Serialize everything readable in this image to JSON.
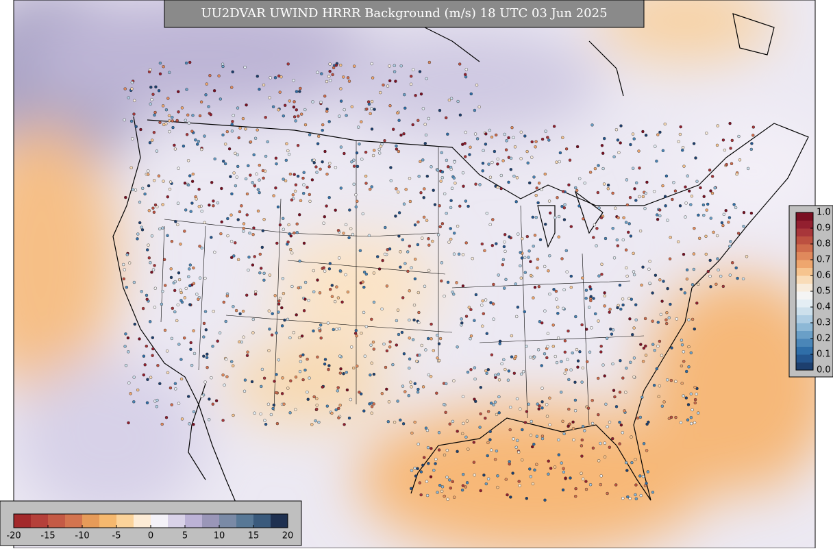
{
  "title": "UU2DVAR UWIND HRRR Background (m/s) 18 UTC 03 Jun 2025",
  "wind_colorbar": {
    "lim": [
      -20,
      20
    ],
    "ticks": [
      -20,
      -15,
      -10,
      -5,
      0,
      5,
      10,
      15,
      20
    ],
    "colors": [
      "#a3292b",
      "#b5403a",
      "#c45a45",
      "#d3744f",
      "#e69b59",
      "#f5b86e",
      "#fbd39a",
      "#fdecd6",
      "#f4f2f8",
      "#d9d2e8",
      "#bcb2d6",
      "#9a96b8",
      "#7a8aa6",
      "#587896",
      "#3a5a7c",
      "#1e3050"
    ]
  },
  "fraction_colorbar": {
    "lim": [
      0,
      1
    ],
    "ticks": [
      {
        "value": 0,
        "label": "0.0"
      },
      0.1,
      0.2,
      0.3,
      0.4,
      0.5,
      0.6,
      0.7,
      0.8,
      0.9,
      {
        "value": 1,
        "label": "1.0"
      }
    ],
    "colors": [
      "#1d3f6e",
      "#24568f",
      "#2f6ea8",
      "#4a86b8",
      "#6a9fc7",
      "#8db8d6",
      "#aecde3",
      "#cde0ec",
      "#e4eef4",
      "#f4f4f4",
      "#f8ecdc",
      "#f9dcb8",
      "#f6c48f",
      "#eea66e",
      "#e0895c",
      "#cf6c4c",
      "#bc5040",
      "#a8363a",
      "#921f2f",
      "#7a0f22"
    ]
  }
}
